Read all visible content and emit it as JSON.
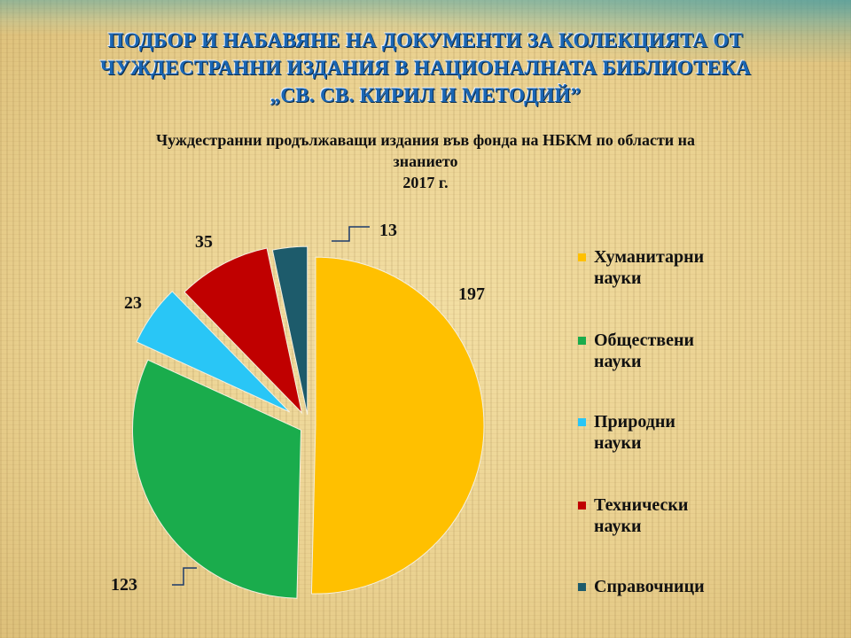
{
  "slide": {
    "title_lines": [
      "ПОДБОР И НАБАВЯНЕ НА ДОКУМЕНТИ ЗА КОЛЕКЦИЯТА ОТ",
      "ЧУЖДЕСТРАННИ  ИЗДАНИЯ В НАЦИОНАЛНАТА БИБЛИОТЕКА",
      "„СВ. СВ. КИРИЛ И МЕТОДИЙ”"
    ]
  },
  "chart_data": {
    "type": "pie",
    "title_lines": [
      "Чуждестранни продължаващи издания във фонда на НБКМ по области на",
      "знанието",
      "2017 г."
    ],
    "categories": [
      "Хуманитарни науки",
      "Обществени науки",
      "Природни науки",
      "Технически науки",
      "Справочници"
    ],
    "values": [
      197,
      123,
      23,
      35,
      13
    ],
    "colors": [
      "#ffc000",
      "#1aac4c",
      "#29c6f6",
      "#c00000",
      "#1d5b6b"
    ],
    "exploded": true,
    "legend": {
      "position": "right",
      "items": [
        {
          "line1": "Хуманитарни",
          "line2": "науки"
        },
        {
          "line1": "Обществени",
          "line2": "науки"
        },
        {
          "line1": "Природни",
          "line2": "науки"
        },
        {
          "line1": "Технически",
          "line2": "науки"
        },
        {
          "line1": "Справочници",
          "line2": ""
        }
      ]
    },
    "data_labels": [
      "197",
      "123",
      "23",
      "35",
      "13"
    ]
  }
}
